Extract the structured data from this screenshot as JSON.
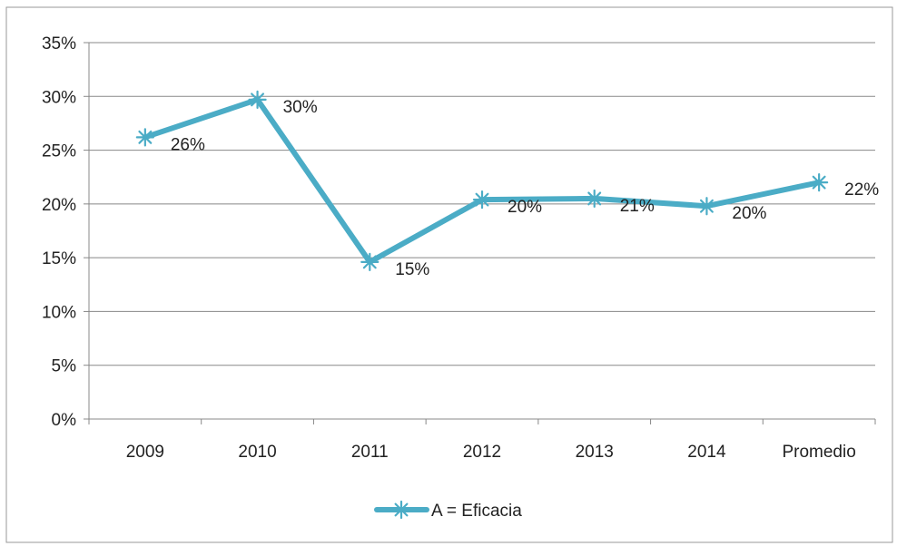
{
  "chart_data": {
    "type": "line",
    "title": "",
    "xlabel": "",
    "ylabel": "",
    "categories": [
      "2009",
      "2010",
      "2011",
      "2012",
      "2013",
      "2014",
      "Promedio"
    ],
    "series": [
      {
        "name": "A = Eficacia",
        "values": [
          26.2,
          29.7,
          14.6,
          20.4,
          20.5,
          19.8,
          22.0
        ],
        "labels": [
          "26%",
          "30%",
          "15%",
          "20%",
          "21%",
          "20%",
          "22%"
        ],
        "color": "#4BACC6",
        "marker": "asterisk"
      }
    ],
    "ylim": [
      0,
      35
    ],
    "yticks": [
      0,
      5,
      10,
      15,
      20,
      25,
      30,
      35
    ],
    "ytick_labels": [
      "0%",
      "5%",
      "10%",
      "15%",
      "20%",
      "25%",
      "30%",
      "35%"
    ],
    "grid": "horizontal",
    "legend_position": "bottom",
    "colors": {
      "line": "#4BACC6",
      "grid": "#888888",
      "axis": "#888888",
      "text": "#222222",
      "frame": "#999999"
    }
  }
}
